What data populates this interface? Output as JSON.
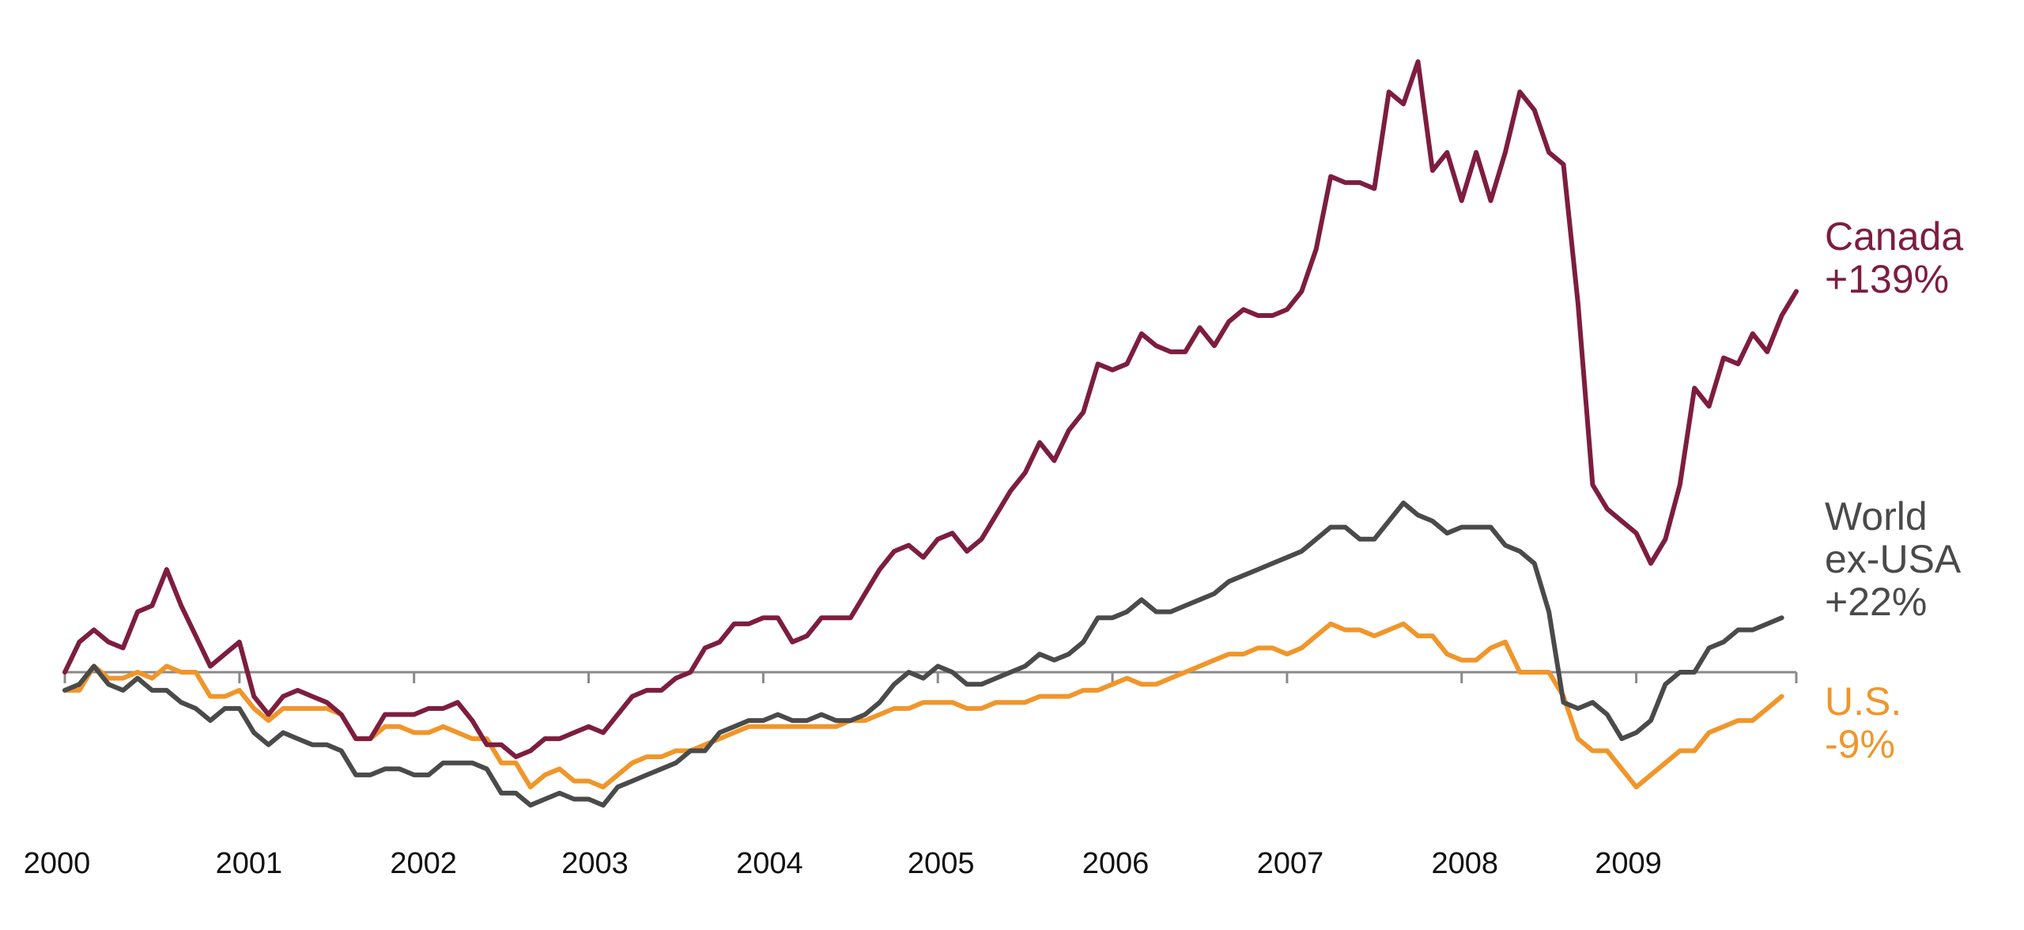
{
  "chart_data": {
    "type": "line",
    "title": "",
    "xlabel": "",
    "ylabel": "",
    "x_start": "2000-01",
    "x_end": "2009-12",
    "frequency": "monthly",
    "baseline": 0,
    "ylim": [
      -24,
      101
    ],
    "grid": false,
    "x_ticks": [
      "2000",
      "2001",
      "2002",
      "2003",
      "2004",
      "2005",
      "2006",
      "2007",
      "2008",
      "2009"
    ],
    "series": [
      {
        "name": "Canada",
        "end_label": "+139%",
        "color": "#7d1d3f",
        "values": [
          0,
          5,
          7,
          5,
          4,
          10,
          11,
          17,
          11,
          6,
          1,
          3,
          5,
          -4,
          -7,
          -4,
          -3,
          -4,
          -5,
          -7,
          -11,
          -11,
          -7,
          -7,
          -7,
          -6,
          -6,
          -5,
          -8,
          -12,
          -12,
          -14,
          -13,
          -11,
          -11,
          -10,
          -9,
          -10,
          -7,
          -4,
          -3,
          -3,
          -1,
          0,
          4,
          5,
          8,
          8,
          9,
          9,
          5,
          6,
          9,
          9,
          9,
          13,
          17,
          20,
          21,
          19,
          22,
          23,
          20,
          22,
          26,
          30,
          33,
          38,
          35,
          40,
          43,
          51,
          50,
          51,
          56,
          54,
          53,
          53,
          57,
          54,
          58,
          60,
          59,
          59,
          60,
          63,
          70,
          82,
          81,
          81,
          80,
          96,
          94,
          101,
          83,
          86,
          78,
          86,
          78,
          86,
          96,
          93,
          86,
          84,
          61,
          31,
          27,
          25,
          23,
          18,
          22,
          31,
          47,
          44,
          52,
          51,
          56,
          53,
          59,
          63
        ]
      },
      {
        "name": "World ex-USA",
        "end_label": "+22%",
        "color": "#4a4a4a",
        "values": [
          -3,
          -2,
          1,
          -2,
          -3,
          -1,
          -3,
          -3,
          -5,
          -6,
          -8,
          -6,
          -6,
          -10,
          -12,
          -10,
          -11,
          -12,
          -12,
          -13,
          -17,
          -17,
          -16,
          -16,
          -17,
          -17,
          -15,
          -15,
          -15,
          -16,
          -20,
          -20,
          -22,
          -21,
          -20,
          -21,
          -21,
          -22,
          -19,
          -18,
          -17,
          -16,
          -15,
          -13,
          -13,
          -10,
          -9,
          -8,
          -8,
          -7,
          -8,
          -8,
          -7,
          -8,
          -8,
          -7,
          -5,
          -2,
          0,
          -1,
          1,
          0,
          -2,
          -2,
          -1,
          0,
          1,
          3,
          2,
          3,
          5,
          9,
          9,
          10,
          12,
          10,
          10,
          11,
          12,
          13,
          15,
          16,
          17,
          18,
          19,
          20,
          22,
          24,
          24,
          22,
          22,
          25,
          28,
          26,
          25,
          23,
          24,
          24,
          24,
          21,
          20,
          18,
          10,
          -5,
          -6,
          -5,
          -7,
          -11,
          -10,
          -8,
          -2,
          0,
          0,
          4,
          5,
          7,
          7,
          8,
          9
        ]
      },
      {
        "name": "U.S.",
        "end_label": "-9%",
        "color": "#f0962a",
        "values": [
          -3,
          -3,
          1,
          -1,
          -1,
          0,
          -1,
          1,
          0,
          0,
          -4,
          -4,
          -3,
          -6,
          -8,
          -6,
          -6,
          -6,
          -6,
          -7,
          -11,
          -11,
          -9,
          -9,
          -10,
          -10,
          -9,
          -10,
          -11,
          -11,
          -15,
          -15,
          -19,
          -17,
          -16,
          -18,
          -18,
          -19,
          -17,
          -15,
          -14,
          -14,
          -13,
          -13,
          -12,
          -11,
          -10,
          -9,
          -9,
          -9,
          -9,
          -9,
          -9,
          -9,
          -8,
          -8,
          -7,
          -6,
          -6,
          -5,
          -5,
          -5,
          -6,
          -6,
          -5,
          -5,
          -5,
          -4,
          -4,
          -4,
          -3,
          -3,
          -2,
          -1,
          -2,
          -2,
          -1,
          0,
          1,
          2,
          3,
          3,
          4,
          4,
          3,
          4,
          6,
          8,
          7,
          7,
          6,
          7,
          8,
          6,
          6,
          3,
          2,
          2,
          4,
          5,
          0,
          0,
          0,
          -4,
          -11,
          -13,
          -13,
          -16,
          -19,
          -17,
          -15,
          -13,
          -13,
          -10,
          -9,
          -8,
          -8,
          -6,
          -4
        ]
      }
    ],
    "series_label_lines": {
      "Canada": [
        "Canada",
        "+139%"
      ],
      "World ex-USA": [
        "World",
        "ex-USA",
        "+22%"
      ],
      "U.S.": [
        "U.S.",
        "-9%"
      ]
    }
  }
}
